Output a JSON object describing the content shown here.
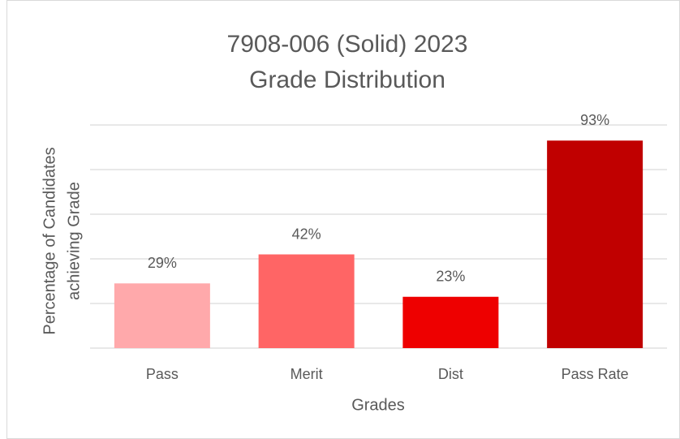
{
  "chart_data": {
    "type": "bar",
    "title": [
      "7908-006 (Solid) 2023",
      "Grade Distribution"
    ],
    "x_label": "Grades",
    "y_label": [
      "Percentage of Candidates",
      "achieving Grade"
    ],
    "categories": [
      "Pass",
      "Merit",
      "Dist",
      "Pass Rate"
    ],
    "values": [
      29,
      42,
      23,
      93
    ],
    "value_labels": [
      "29%",
      "42%",
      "23%",
      "93%"
    ],
    "colors": [
      "#ffa9ab",
      "#ff6565",
      "#ee0000",
      "#c00000"
    ],
    "ylim": [
      0,
      100
    ],
    "yticks": [
      0,
      20,
      40,
      60,
      80,
      100
    ],
    "grid": true
  }
}
